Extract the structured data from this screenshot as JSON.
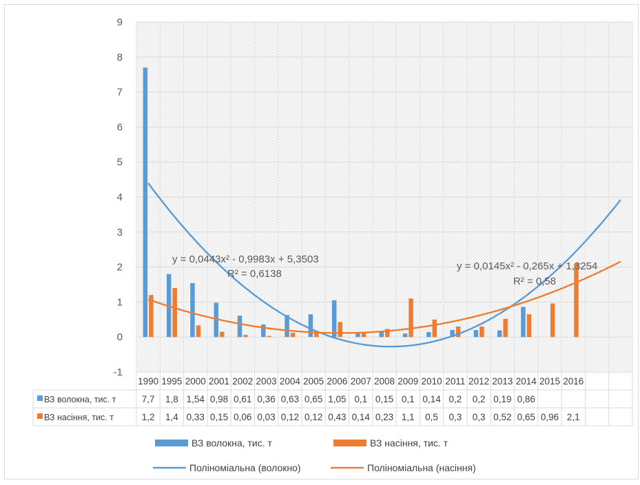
{
  "chart_data": {
    "type": "bar",
    "categories": [
      "1990",
      "1995",
      "2000",
      "2001",
      "2002",
      "2003",
      "2004",
      "2005",
      "2006",
      "2007",
      "2008",
      "2009",
      "2010",
      "2011",
      "2012",
      "2013",
      "2014",
      "2015",
      "2016"
    ],
    "series": [
      {
        "name": "ВЗ волокна, тис. т",
        "color": "#5b9bd5",
        "values": [
          7.7,
          1.8,
          1.54,
          0.98,
          0.61,
          0.36,
          0.63,
          0.65,
          1.05,
          0.1,
          0.15,
          0.1,
          0.14,
          0.2,
          0.2,
          0.19,
          0.86,
          null,
          null
        ],
        "labels": [
          "7,7",
          "1,8",
          "1,54",
          "0,98",
          "0,61",
          "0,36",
          "0,63",
          "0,65",
          "1,05",
          "0,1",
          "0,15",
          "0,1",
          "0,14",
          "0,2",
          "0,2",
          "0,19",
          "0,86",
          "",
          ""
        ]
      },
      {
        "name": "ВЗ насіння, тис. т",
        "color": "#ed7d31",
        "values": [
          1.2,
          1.4,
          0.33,
          0.15,
          0.06,
          0.03,
          0.12,
          0.12,
          0.43,
          0.14,
          0.23,
          1.1,
          0.5,
          0.3,
          0.3,
          0.52,
          0.65,
          0.96,
          2.1
        ],
        "labels": [
          "1,2",
          "1,4",
          "0,33",
          "0,15",
          "0,06",
          "0,03",
          "0,12",
          "0,12",
          "0,43",
          "0,14",
          "0,23",
          "1,1",
          "0,5",
          "0,3",
          "0,3",
          "0,52",
          "0,65",
          "0,96",
          "2,1"
        ]
      }
    ],
    "trendlines": [
      {
        "name": "Поліноміальна (волокно)",
        "color": "#5b9bd5",
        "coef": [
          0.0443,
          -0.9983,
          5.3503
        ],
        "equation": "y = 0,0443x² - 0,9983x + 5,3503",
        "r2": "R² = 0,6138"
      },
      {
        "name": "Поліноміальна (насіння)",
        "color": "#ed7d31",
        "coef": [
          0.0145,
          -0.265,
          1.3254
        ],
        "equation": "y = 0,0145x² - 0,265x + 1,3254",
        "r2": "R² = 0,58"
      }
    ],
    "ylim": [
      -1,
      9
    ],
    "yticks": [
      "9",
      "8",
      "7",
      "6",
      "5",
      "4",
      "3",
      "2",
      "1",
      "0",
      "-1"
    ],
    "grid": true,
    "legend_placement": "bottom",
    "data_table": true
  }
}
